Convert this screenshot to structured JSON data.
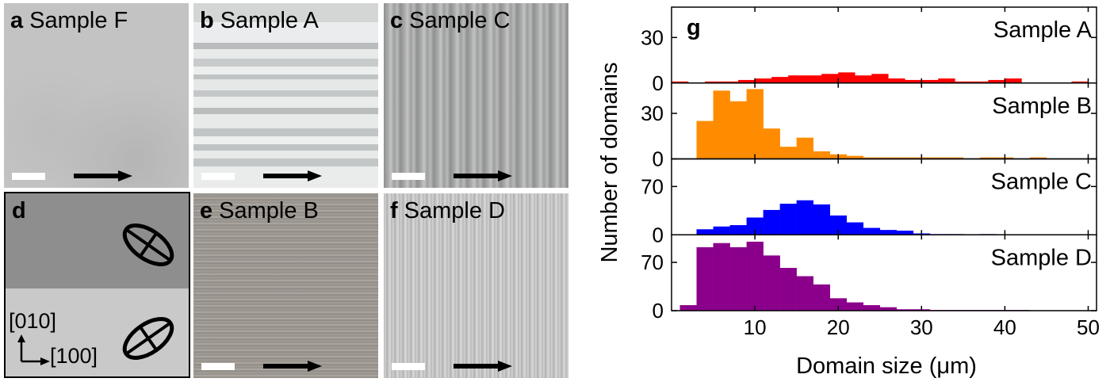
{
  "panels": {
    "a": {
      "letter": "a",
      "title": "Sample F"
    },
    "b": {
      "letter": "b",
      "title": "Sample A"
    },
    "c": {
      "letter": "c",
      "title": "Sample C"
    },
    "d": {
      "letter": "d",
      "dir_y": "[010]",
      "dir_x": "[100]"
    },
    "e": {
      "letter": "e",
      "title": "Sample B"
    },
    "f": {
      "letter": "f",
      "title": "Sample D"
    }
  },
  "chart_data": {
    "panel_letter": "g",
    "type": "bar",
    "xlabel": "Domain size (μm)",
    "ylabel": "Number of domains",
    "xlim": [
      0,
      51
    ],
    "xticks": [
      10,
      20,
      30,
      40,
      50
    ],
    "bin_width": 2,
    "series": [
      {
        "name": "Sample A",
        "color": "#ff0000",
        "ylim": [
          0,
          50
        ],
        "yticks": [
          0,
          30
        ],
        "bins": [
          [
            0,
            1
          ],
          [
            4,
            1
          ],
          [
            6,
            1
          ],
          [
            8,
            2
          ],
          [
            10,
            3
          ],
          [
            12,
            4
          ],
          [
            14,
            5
          ],
          [
            16,
            5
          ],
          [
            18,
            6
          ],
          [
            20,
            7
          ],
          [
            22,
            5
          ],
          [
            24,
            6
          ],
          [
            26,
            3
          ],
          [
            28,
            2
          ],
          [
            30,
            2
          ],
          [
            32,
            3
          ],
          [
            34,
            1
          ],
          [
            36,
            1
          ],
          [
            38,
            2
          ],
          [
            40,
            3
          ],
          [
            48,
            1
          ]
        ]
      },
      {
        "name": "Sample B",
        "color": "#ff8c00",
        "ylim": [
          0,
          50
        ],
        "yticks": [
          0,
          30
        ],
        "bins": [
          [
            3,
            25
          ],
          [
            5,
            45
          ],
          [
            7,
            38
          ],
          [
            9,
            46
          ],
          [
            11,
            20
          ],
          [
            13,
            8
          ],
          [
            15,
            14
          ],
          [
            17,
            5
          ],
          [
            19,
            3
          ],
          [
            21,
            2
          ],
          [
            23,
            1
          ],
          [
            25,
            1
          ],
          [
            27,
            1
          ],
          [
            29,
            1
          ],
          [
            31,
            1
          ],
          [
            33,
            1
          ],
          [
            37,
            1
          ],
          [
            39,
            1
          ],
          [
            43,
            1
          ]
        ]
      },
      {
        "name": "Sample C",
        "color": "#0000ff",
        "ylim": [
          0,
          110
        ],
        "yticks": [
          0,
          70
        ],
        "bins": [
          [
            3,
            8
          ],
          [
            5,
            12
          ],
          [
            7,
            14
          ],
          [
            9,
            25
          ],
          [
            11,
            36
          ],
          [
            13,
            45
          ],
          [
            15,
            50
          ],
          [
            17,
            44
          ],
          [
            19,
            28
          ],
          [
            21,
            18
          ],
          [
            23,
            10
          ],
          [
            25,
            7
          ],
          [
            27,
            6
          ],
          [
            29,
            2
          ],
          [
            31,
            1
          ],
          [
            33,
            1
          ],
          [
            37,
            1
          ]
        ]
      },
      {
        "name": "Sample D",
        "color": "#8b008b",
        "ylim": [
          0,
          110
        ],
        "yticks": [
          0,
          70
        ],
        "bins": [
          [
            1,
            8
          ],
          [
            3,
            92
          ],
          [
            5,
            98
          ],
          [
            7,
            92
          ],
          [
            9,
            100
          ],
          [
            11,
            80
          ],
          [
            13,
            62
          ],
          [
            15,
            50
          ],
          [
            17,
            38
          ],
          [
            19,
            18
          ],
          [
            21,
            12
          ],
          [
            23,
            8
          ],
          [
            25,
            5
          ],
          [
            27,
            2
          ],
          [
            29,
            2
          ],
          [
            31,
            1
          ],
          [
            33,
            1
          ],
          [
            35,
            1
          ],
          [
            37,
            1
          ],
          [
            39,
            1
          ],
          [
            41,
            1
          ]
        ]
      }
    ]
  }
}
